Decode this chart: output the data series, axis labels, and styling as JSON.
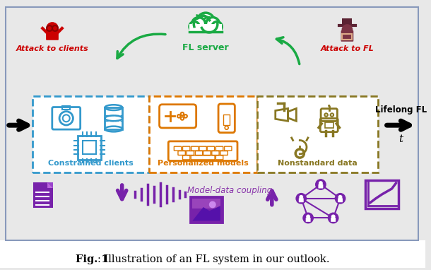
{
  "bg_color": "#e8e8e8",
  "caption_bold": "Fig. 1",
  "caption_normal": ": Illustration of an FL system in our outlook.",
  "fl_server_label": "FL server",
  "fl_server_color": "#1aaa44",
  "attack_clients_label": "Attack to clients",
  "attack_fl_label": "Attack to FL",
  "attack_color": "#cc0000",
  "box1_label": "Constrained clients",
  "box1_color": "#3399cc",
  "box2_label": "Personalized models",
  "box2_color": "#dd7700",
  "box3_label": "Nonstandard data",
  "box3_color": "#887722",
  "lifelong_label": "Lifelong FL",
  "lifelong_t": "t",
  "model_data_label": "Model-data coupling",
  "model_data_color": "#8833aa",
  "purple_color": "#7722aa",
  "white_color": "#ffffff"
}
